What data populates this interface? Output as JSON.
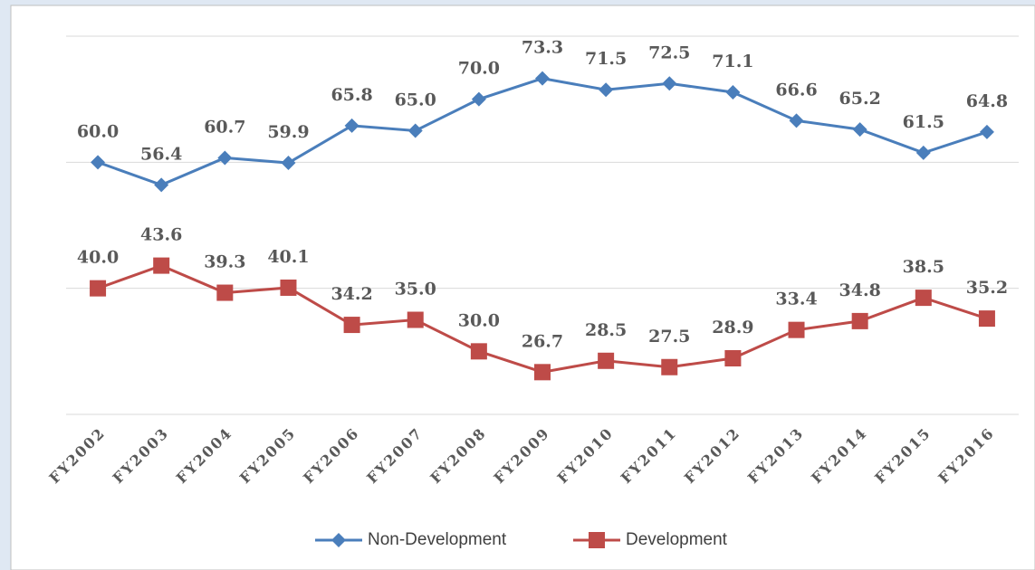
{
  "chart_data": {
    "type": "line",
    "categories": [
      "FY2002",
      "FY2003",
      "FY2004",
      "FY2005",
      "FY2006",
      "FY2007",
      "FY2008",
      "FY2009",
      "FY2010",
      "FY2011",
      "FY2012",
      "FY2013",
      "FY2014",
      "FY2015",
      "FY2016"
    ],
    "series": [
      {
        "name": "Non-Development",
        "color": "#4a7ebb",
        "marker": "diamond",
        "values": [
          60.0,
          56.4,
          60.7,
          59.9,
          65.8,
          65.0,
          70.0,
          73.3,
          71.5,
          72.5,
          71.1,
          66.6,
          65.2,
          61.5,
          64.8
        ],
        "value_labels": [
          "60.0",
          "56.4",
          "60.7",
          "59.9",
          "65.8",
          "65.0",
          "70.0",
          "73.3",
          "71.5",
          "72.5",
          "71.1",
          "66.6",
          "65.2",
          "61.5",
          "64.8"
        ]
      },
      {
        "name": "Development",
        "color": "#be4b48",
        "marker": "square",
        "values": [
          40.0,
          43.6,
          39.3,
          40.1,
          34.2,
          35.0,
          30.0,
          26.7,
          28.5,
          27.5,
          28.9,
          33.4,
          34.8,
          38.5,
          35.2
        ],
        "value_labels": [
          "40.0",
          "43.6",
          "39.3",
          "40.1",
          "34.2",
          "35.0",
          "30.0",
          "26.7",
          "28.5",
          "27.5",
          "28.9",
          "33.4",
          "34.8",
          "38.5",
          "35.2"
        ]
      }
    ],
    "ylim": [
      20,
      80
    ],
    "yticks": [
      20,
      40,
      60,
      80
    ],
    "grid": true,
    "legend": "bottom"
  }
}
